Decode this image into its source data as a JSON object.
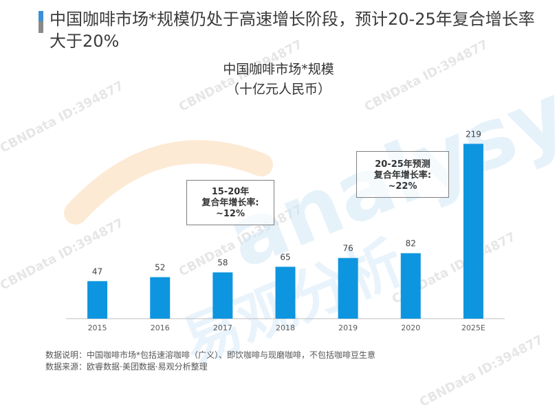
{
  "title": "中国咖啡市场*规模仍处于高速增长阶段，预计20-25年复合增长率大于20%",
  "chart_title": "中国咖啡市场*规模",
  "chart_unit": "（十亿元人民币）",
  "colors": {
    "bar": "#0e95df",
    "axis": "#bfbfbf",
    "label": "#404040",
    "accent": "#3a8fd8"
  },
  "chart_data": {
    "type": "bar",
    "categories": [
      "2015",
      "2016",
      "2017",
      "2018",
      "2019",
      "2020",
      "2025E"
    ],
    "values": [
      47,
      52,
      58,
      65,
      76,
      82,
      219
    ],
    "title": "中国咖啡市场*规模",
    "ylabel": "（十亿元人民币）",
    "ylim": [
      0,
      240
    ],
    "grid": false,
    "annotations": [
      {
        "lines": [
          "15-20年",
          "复合年增长率:",
          "~12%"
        ]
      },
      {
        "lines": [
          "20-25年预测",
          "复合年增长率:",
          "~22%"
        ]
      }
    ]
  },
  "footnotes": {
    "note": "数据说明：中国咖啡市场*包括速溶咖啡（广义）、即饮咖啡与现磨咖啡，不包括咖啡豆生意",
    "source": "数据来源：欧睿数据·美团数据·易观分析整理"
  },
  "watermark": {
    "text": "CBNData ID:394877",
    "logo_text": "analysys",
    "logo_cn": "易观分析"
  }
}
